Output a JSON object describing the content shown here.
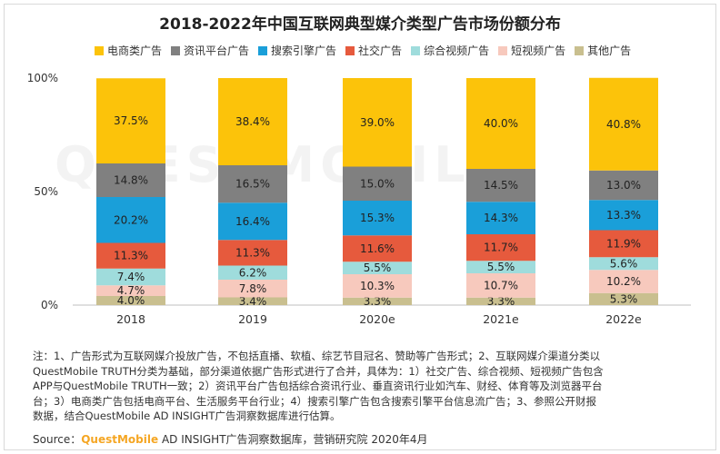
{
  "chart_data": {
    "type": "bar",
    "stacked": true,
    "title": "2018-2022年中国互联网典型媒介类型广告市场份额分布",
    "categories": [
      "2018",
      "2019",
      "2020e",
      "2021e",
      "2022e"
    ],
    "yticks": [
      "0%",
      "50%",
      "100%"
    ],
    "ylim": [
      0,
      100
    ],
    "legend_position": "top",
    "series": [
      {
        "name": "其他广告",
        "color": "#c9bf8f",
        "values": [
          4.0,
          3.4,
          3.3,
          3.3,
          5.3
        ],
        "labels": [
          "4.0%",
          "3.4%",
          "3.3%",
          "3.3%",
          "5.3%"
        ]
      },
      {
        "name": "短视频广告",
        "color": "#f7c9bd",
        "values": [
          4.7,
          7.8,
          10.3,
          10.7,
          10.2
        ],
        "labels": [
          "4.7%",
          "7.8%",
          "10.3%",
          "10.7%",
          "10.2%"
        ]
      },
      {
        "name": "综合视频广告",
        "color": "#9fdcdc",
        "values": [
          7.4,
          6.2,
          5.5,
          5.5,
          5.6
        ],
        "labels": [
          "7.4%",
          "6.2%",
          "5.5%",
          "5.5%",
          "5.6%"
        ]
      },
      {
        "name": "社交广告",
        "color": "#e65a3d",
        "values": [
          11.3,
          11.3,
          11.6,
          11.7,
          11.9
        ],
        "labels": [
          "11.3%",
          "11.3%",
          "11.6%",
          "11.7%",
          "11.9%"
        ]
      },
      {
        "name": "搜索引擎广告",
        "color": "#1a9fd9",
        "values": [
          20.2,
          16.4,
          15.3,
          14.3,
          13.3
        ],
        "labels": [
          "20.2%",
          "16.4%",
          "15.3%",
          "14.3%",
          "13.3%"
        ]
      },
      {
        "name": "资讯平台广告",
        "color": "#808080",
        "values": [
          14.8,
          16.5,
          15.0,
          14.5,
          13.0
        ],
        "labels": [
          "14.8%",
          "16.5%",
          "15.0%",
          "14.5%",
          "13.0%"
        ]
      },
      {
        "name": "电商类广告",
        "color": "#fcc30a",
        "values": [
          37.5,
          38.4,
          39.0,
          40.0,
          40.8
        ],
        "labels": [
          "37.5%",
          "38.4%",
          "39.0%",
          "40.0%",
          "40.8%"
        ]
      }
    ],
    "legend_order": [
      "电商类广告",
      "资讯平台广告",
      "搜索引擎广告",
      "社交广告",
      "综合视频广告",
      "短视频广告",
      "其他广告"
    ]
  },
  "watermark": "QUESTMOBILE",
  "note_lines": [
    "注：1、广告形式为互联网媒介投放广告，不包括直播、软植、综艺节目冠名、赞助等广告形式；2、互联网媒介渠道分类以",
    "QuestMobile TRUTH分类为基础，部分渠道依据广告形式进行了合并，具体为：1）社交广告、综合视频、短视频广告包含",
    "APP与QuestMobile TRUTH一致；2）资讯平台广告包括综合资讯行业、垂直资讯行业如汽车、财经、体育等及浏览器平台",
    "台；3）电商类广告包括电商平台、生活服务平台行业；4）搜索引擎广告包含搜索引擎平台信息流广告；3、参照公开财报",
    "数据，结合QuestMobile AD INSIGHT广告洞察数据库进行估算。"
  ],
  "source": {
    "prefix": "Source：",
    "brand": "QuestMobile",
    "text": " AD INSIGHT广告洞察数据库，营销研究院 2020年4月"
  }
}
